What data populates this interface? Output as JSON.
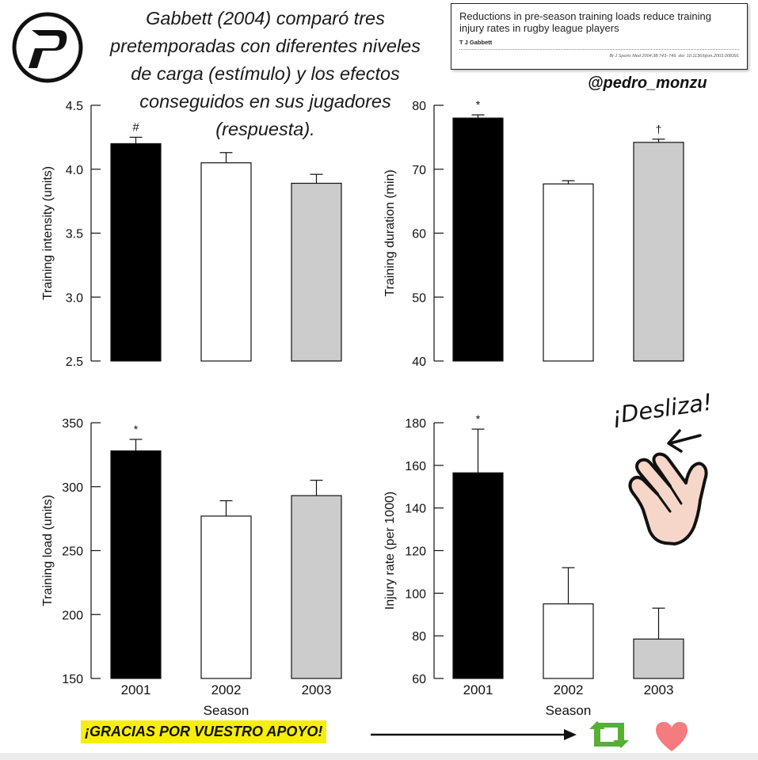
{
  "header": {
    "headline_lines": [
      "Gabbett (2004) comparó tres",
      "pretemporadas con diferentes niveles",
      "de carga (estímulo) y los efectos",
      "conseguidos en sus jugadores",
      "(respuesta)."
    ],
    "paper": {
      "title": "Reductions in pre-season training loads reduce training injury rates in rugby league players",
      "author": "T J Gabbett",
      "citation": "Br J Sports Med 2004;38:743–749. doi: 10.1136/bjsm.2003.008391"
    },
    "handle": "@pedro_monzu"
  },
  "swipe": {
    "label": "¡Desliza!"
  },
  "footer": {
    "thanks": "¡GRACIAS POR VUESTRO APOYO!"
  },
  "colors": {
    "season_2001": "#000000",
    "season_2002": "#ffffff",
    "season_2003": "#cccccc",
    "thanks_bg": "#f7ee0b",
    "retweet": "#55b033",
    "heart": "#f47b7e"
  },
  "icons": [
    "logo-p-icon",
    "left-arrow-icon",
    "swipe-hand-icon",
    "long-right-arrow-icon",
    "retweet-icon",
    "heart-icon"
  ],
  "chart_data": [
    {
      "type": "bar",
      "categories": [
        "2001",
        "2002",
        "2003"
      ],
      "values": [
        4.2,
        4.05,
        3.89
      ],
      "errors": [
        0.05,
        0.08,
        0.07
      ],
      "annotations": [
        "#",
        "",
        ""
      ],
      "ylabel": "Training intensity (units)",
      "xlabel": "",
      "ylim": [
        2.5,
        4.5
      ],
      "yticks": [
        "2.5",
        "3.0",
        "3.5",
        "4.0",
        "4.5"
      ],
      "show_category_labels": false
    },
    {
      "type": "bar",
      "categories": [
        "2001",
        "2002",
        "2003"
      ],
      "values": [
        78,
        67.7,
        74.2
      ],
      "errors": [
        0.5,
        0.5,
        0.5
      ],
      "annotations": [
        "*",
        "",
        "†"
      ],
      "ylabel": "Training duration (min)",
      "xlabel": "",
      "ylim": [
        40,
        80
      ],
      "yticks": [
        "40",
        "50",
        "60",
        "70",
        "80"
      ],
      "show_category_labels": false
    },
    {
      "type": "bar",
      "categories": [
        "2001",
        "2002",
        "2003"
      ],
      "values": [
        328,
        277,
        293
      ],
      "errors": [
        9,
        12,
        12
      ],
      "annotations": [
        "*",
        "",
        ""
      ],
      "ylabel": "Training load (units)",
      "xlabel": "Season",
      "ylim": [
        150,
        350
      ],
      "yticks": [
        "150",
        "200",
        "250",
        "300",
        "350"
      ],
      "show_category_labels": true
    },
    {
      "type": "bar",
      "categories": [
        "2001",
        "2002",
        "2003"
      ],
      "values": [
        156.5,
        95,
        78.5
      ],
      "errors": [
        20.5,
        17,
        14.5
      ],
      "annotations": [
        "*",
        "",
        ""
      ],
      "ylabel": "Injury rate (per 1000)",
      "xlabel": "Season",
      "ylim": [
        60,
        180
      ],
      "yticks": [
        "60",
        "80",
        "100",
        "120",
        "140",
        "160",
        "180"
      ],
      "show_category_labels": true
    }
  ]
}
